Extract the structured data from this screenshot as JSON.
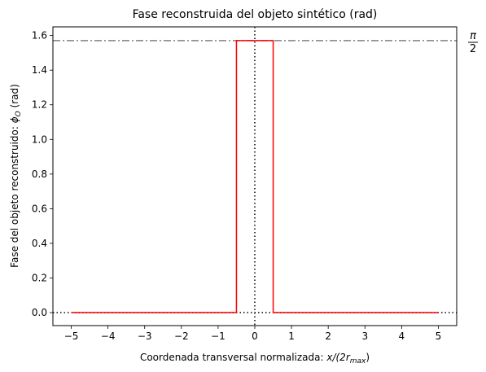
{
  "chart_data": {
    "type": "line",
    "title": "Fase reconstruida del objeto sintético (rad)",
    "xlabel_text": "Coordenada transversal normalizada: ",
    "xlabel_math": "x/(2r",
    "xlabel_sub": "max",
    "xlabel_close": ")",
    "ylabel_text": "Fase del objeto reconstruido: ",
    "ylabel_math": "ϕ",
    "ylabel_sub": "O",
    "ylabel_close": " (rad)",
    "xlim": [
      -5.5,
      5.5
    ],
    "ylim": [
      -0.075,
      1.65
    ],
    "xticks": [
      -5,
      -4,
      -3,
      -2,
      -1,
      0,
      1,
      2,
      3,
      4,
      5
    ],
    "xtick_labels": [
      "−5",
      "−4",
      "−3",
      "−2",
      "−1",
      "0",
      "1",
      "2",
      "3",
      "4",
      "5"
    ],
    "yticks": [
      0.0,
      0.2,
      0.4,
      0.6,
      0.8,
      1.0,
      1.2,
      1.4,
      1.6
    ],
    "ytick_labels": [
      "0.0",
      "0.2",
      "0.4",
      "0.6",
      "0.8",
      "1.0",
      "1.2",
      "1.4",
      "1.6"
    ],
    "grid": false,
    "series": [
      {
        "x": [
          -5,
          -0.5,
          -0.5,
          0.5,
          0.5,
          5
        ],
        "y": [
          0,
          0,
          1.5708,
          1.5708,
          0,
          0
        ],
        "color": "#ff0000"
      }
    ],
    "reference_lines": {
      "hline_value": 1.5708,
      "hline_color": "#808080",
      "hline_label_num": "π",
      "hline_label_den": "2",
      "zero_hline": 0,
      "zero_vline": 0
    }
  }
}
